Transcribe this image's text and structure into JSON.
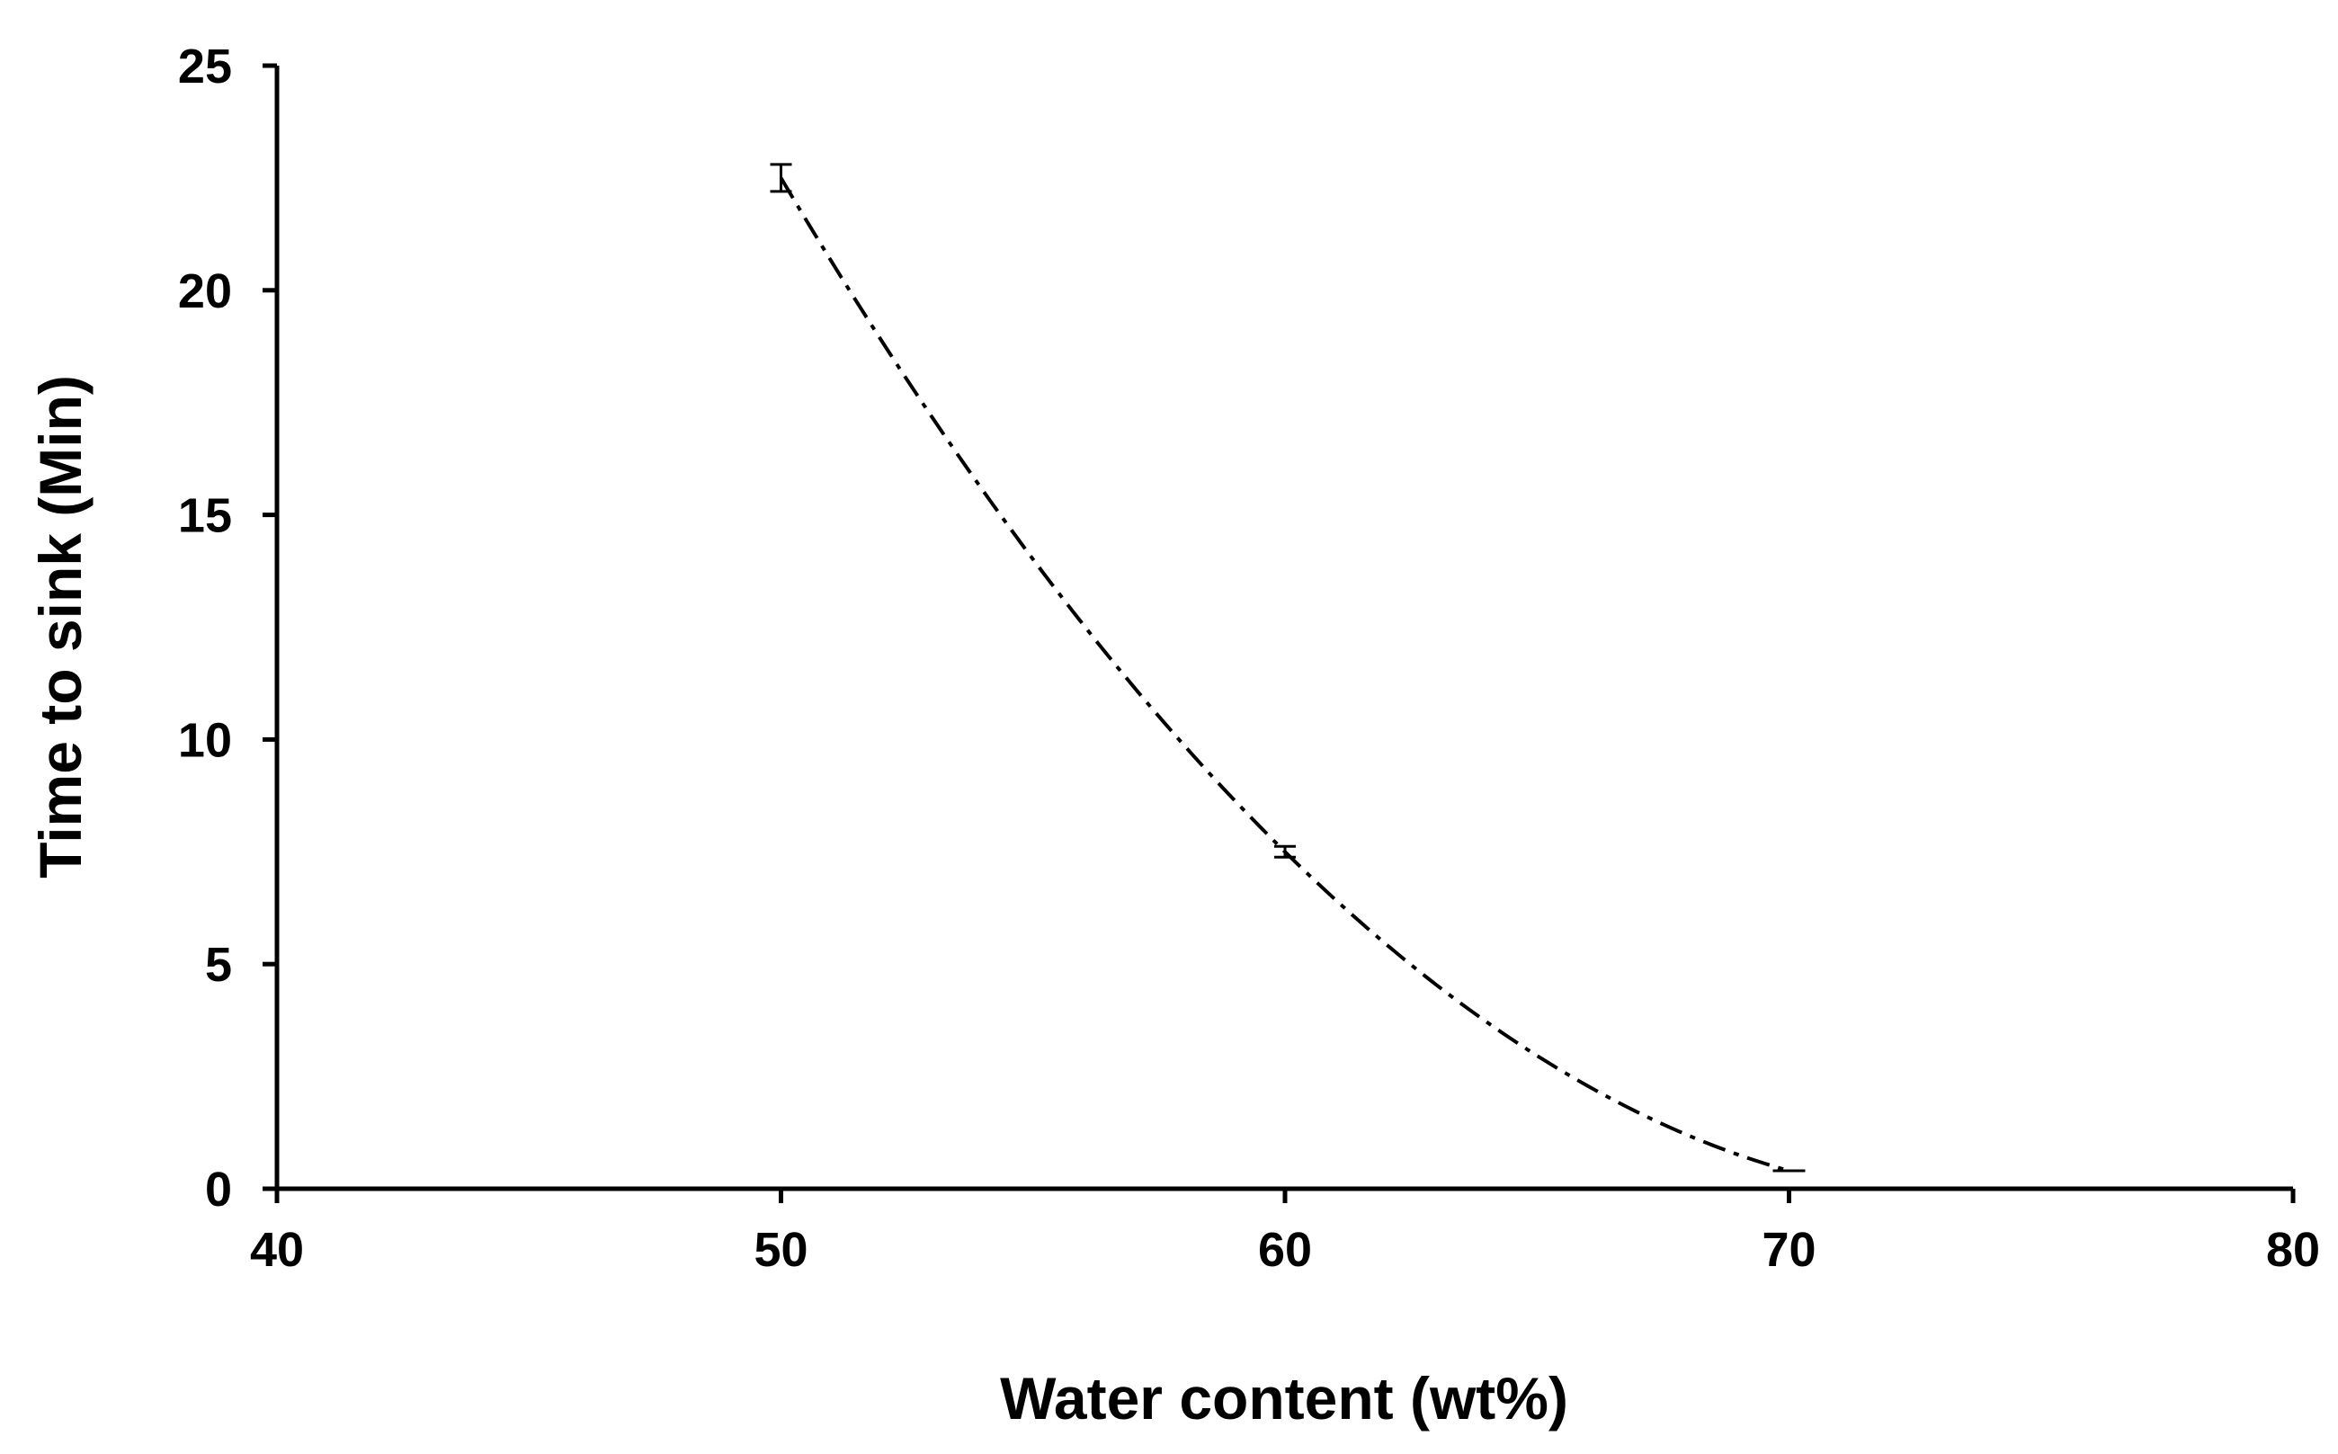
{
  "chart_data": {
    "type": "line",
    "title": "",
    "xlabel": "Water content  (wt%)",
    "ylabel": "Time  to  sink  (Min)",
    "xlim": [
      40,
      80
    ],
    "ylim": [
      0,
      25
    ],
    "x_ticks": [
      "40",
      "50",
      "60",
      "70",
      "80"
    ],
    "y_ticks": [
      "0",
      "5",
      "10",
      "15",
      "20",
      "25"
    ],
    "grid": false,
    "legend": "none",
    "series": [
      {
        "line_style": "dash-dot",
        "color": "#000000",
        "points": [
          {
            "x": 50,
            "y": 22.5,
            "err": 0.3
          },
          {
            "x": 60,
            "y": 7.5,
            "err": 0.12
          },
          {
            "x": 70,
            "y": 0.4,
            "err": 0
          }
        ]
      }
    ]
  }
}
